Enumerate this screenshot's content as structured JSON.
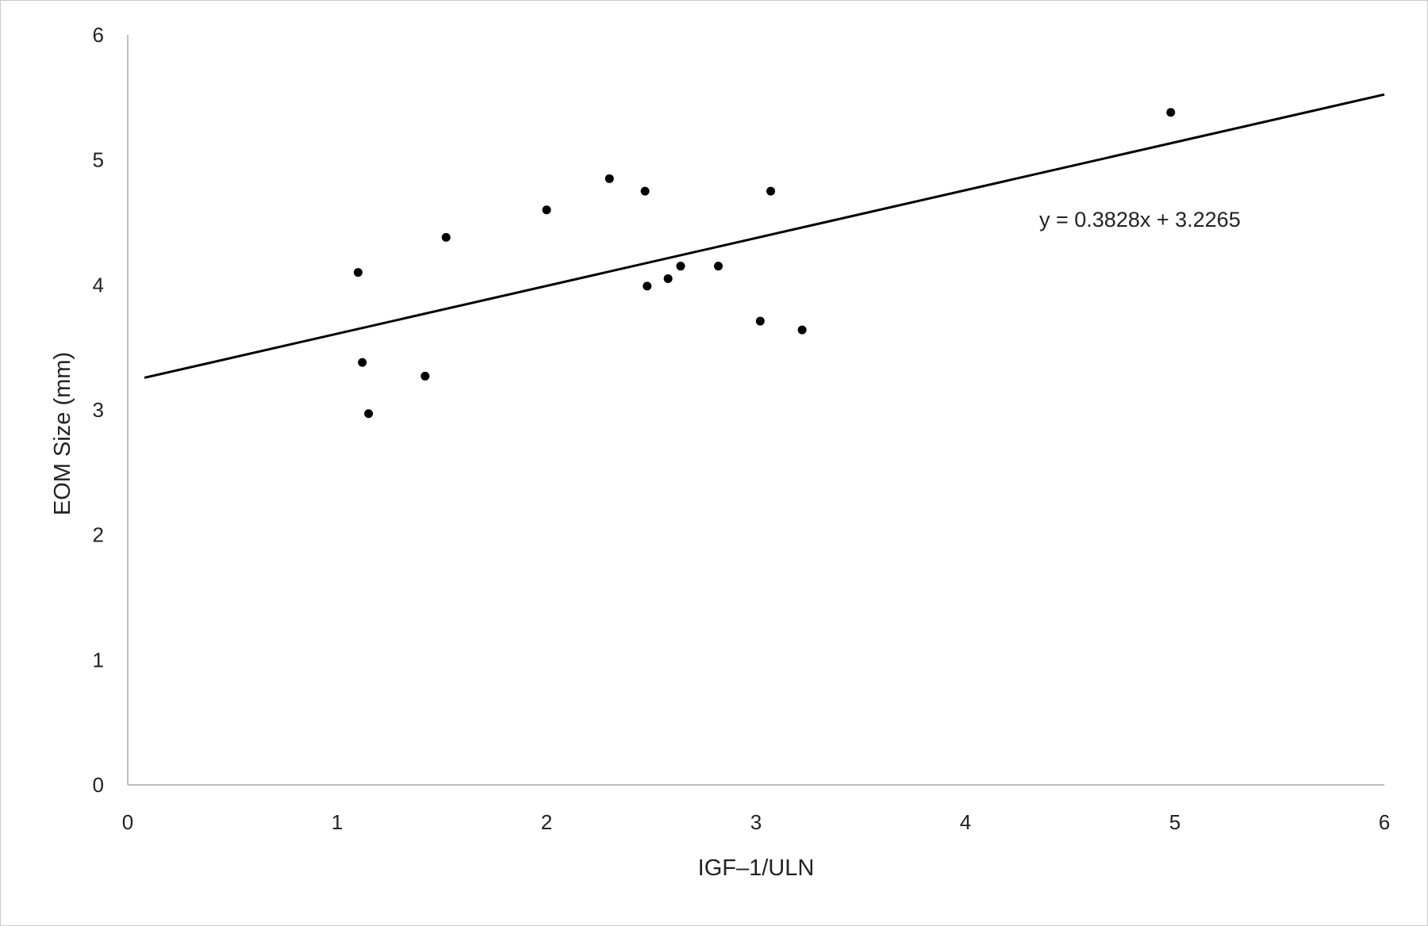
{
  "chart_data": {
    "type": "scatter",
    "title": "",
    "xlabel": "IGF–1/ULN",
    "ylabel": "EOM Size (mm)",
    "xlim": [
      0,
      6
    ],
    "ylim": [
      0,
      6
    ],
    "xticks": [
      "0",
      "1",
      "2",
      "3",
      "4",
      "5",
      "6"
    ],
    "yticks": [
      "0",
      "1",
      "2",
      "3",
      "4",
      "5",
      "6"
    ],
    "grid": false,
    "legend": "none",
    "points": [
      {
        "x": 1.1,
        "y": 4.1
      },
      {
        "x": 1.12,
        "y": 3.38
      },
      {
        "x": 1.15,
        "y": 2.97
      },
      {
        "x": 1.42,
        "y": 3.27
      },
      {
        "x": 1.52,
        "y": 4.38
      },
      {
        "x": 2.0,
        "y": 4.6
      },
      {
        "x": 2.3,
        "y": 4.85
      },
      {
        "x": 2.47,
        "y": 4.75
      },
      {
        "x": 2.48,
        "y": 3.99
      },
      {
        "x": 2.58,
        "y": 4.05
      },
      {
        "x": 2.64,
        "y": 4.15
      },
      {
        "x": 2.82,
        "y": 4.15
      },
      {
        "x": 3.02,
        "y": 3.71
      },
      {
        "x": 3.07,
        "y": 4.75
      },
      {
        "x": 3.22,
        "y": 3.64
      },
      {
        "x": 4.98,
        "y": 5.38
      }
    ],
    "trendline": {
      "slope": 0.3828,
      "intercept": 3.2265,
      "x_range": [
        0.08,
        6
      ],
      "equation": "y = 0.3828x + 3.2265"
    },
    "colors": {
      "points": "#000000",
      "trendline": "#000000",
      "axis": "#bfbfbf"
    }
  }
}
